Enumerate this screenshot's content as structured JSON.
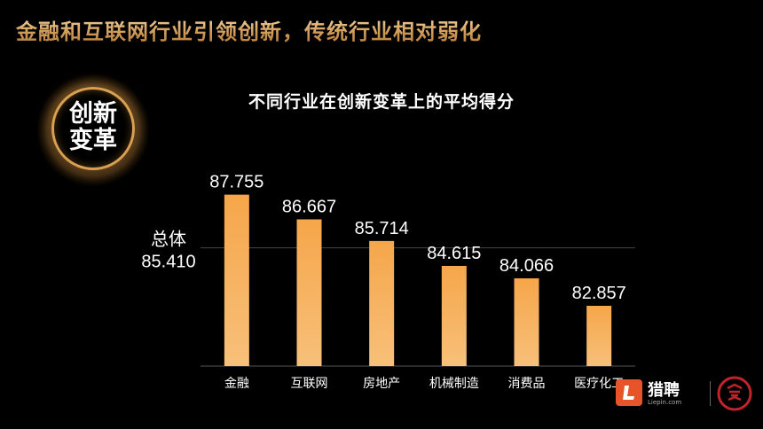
{
  "headline": "金融和互联网行业引领创新，传统行业相对弱化",
  "badge": {
    "line1": "创新",
    "line2": "变革"
  },
  "chart_data": {
    "type": "bar",
    "title": "不同行业在创新变革上的平均得分",
    "categories": [
      "金融",
      "互联网",
      "房地产",
      "机械制造",
      "消费品",
      "医疗化工"
    ],
    "values": [
      87.755,
      86.667,
      85.714,
      84.615,
      84.066,
      82.857
    ],
    "value_labels": [
      "87.755",
      "86.667",
      "85.714",
      "84.615",
      "84.066",
      "82.857"
    ],
    "reference_line": {
      "label": "总体",
      "value": 85.41,
      "value_label": "85.410"
    },
    "ylim": [
      80.2,
      88.6
    ],
    "grid": false,
    "bar_color_top": "#f6a64a",
    "bar_color_bottom": "#f7c07a"
  },
  "logo": {
    "brand": "猎聘",
    "sub": "Liepin.com",
    "letter": "L"
  }
}
